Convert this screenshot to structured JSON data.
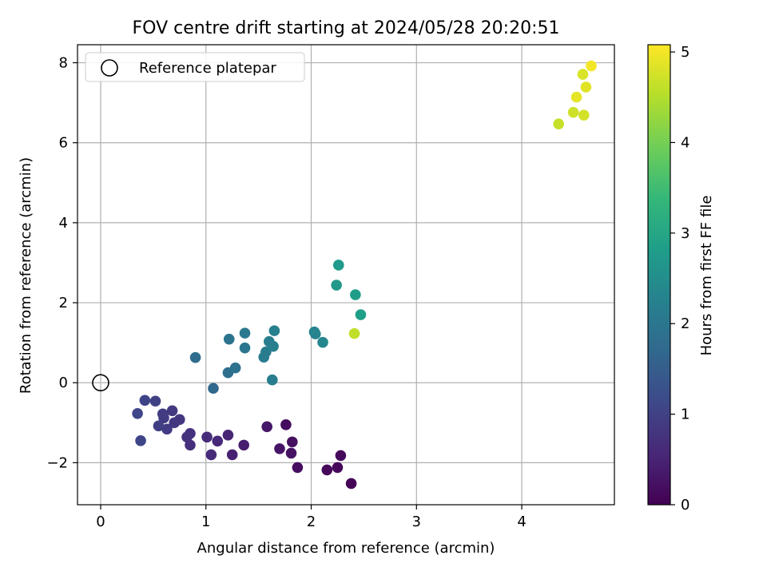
{
  "chart_data": {
    "type": "scatter",
    "title": "FOV centre drift starting at 2024/05/28 20:20:51",
    "xlabel": "Angular distance from reference (arcmin)",
    "ylabel": "Rotation from reference (arcmin)",
    "xlim": [
      -0.22,
      4.88
    ],
    "ylim": [
      -3.05,
      8.45
    ],
    "xticks": [
      0,
      1,
      2,
      3,
      4
    ],
    "yticks": [
      -2,
      0,
      2,
      4,
      6,
      8
    ],
    "ytick_labels": [
      "−2",
      "0",
      "2",
      "4",
      "6",
      "8"
    ],
    "grid": true,
    "legend": {
      "placement": "top-left",
      "entries": [
        "Reference platepar"
      ]
    },
    "reference_point": {
      "x": 0,
      "y": 0,
      "label": "Reference platepar"
    },
    "colorbar": {
      "label": "Hours from first FF file",
      "range": [
        0,
        5.08
      ],
      "ticks": [
        0,
        1,
        2,
        3,
        4,
        5
      ],
      "colormap": [
        "#440154",
        "#482878",
        "#3e4989",
        "#31688e",
        "#26828e",
        "#1f9e89",
        "#35b779",
        "#6ece58",
        "#b5de2b",
        "#fde725"
      ]
    },
    "points": [
      {
        "x": 2.38,
        "y": -2.52,
        "h": 0.05
      },
      {
        "x": 2.15,
        "y": -2.18,
        "h": 0.08
      },
      {
        "x": 2.25,
        "y": -2.12,
        "h": 0.1
      },
      {
        "x": 2.28,
        "y": -1.82,
        "h": 0.12
      },
      {
        "x": 1.76,
        "y": -1.05,
        "h": 0.15
      },
      {
        "x": 1.87,
        "y": -2.12,
        "h": 0.18
      },
      {
        "x": 1.82,
        "y": -1.48,
        "h": 0.22
      },
      {
        "x": 1.81,
        "y": -1.76,
        "h": 0.25
      },
      {
        "x": 1.7,
        "y": -1.65,
        "h": 0.28
      },
      {
        "x": 1.58,
        "y": -1.1,
        "h": 0.32
      },
      {
        "x": 1.36,
        "y": -1.56,
        "h": 0.42
      },
      {
        "x": 1.25,
        "y": -1.8,
        "h": 0.48
      },
      {
        "x": 1.21,
        "y": -1.31,
        "h": 0.52
      },
      {
        "x": 1.11,
        "y": -1.46,
        "h": 0.56
      },
      {
        "x": 1.05,
        "y": -1.8,
        "h": 0.6
      },
      {
        "x": 1.01,
        "y": -1.36,
        "h": 0.64
      },
      {
        "x": 0.85,
        "y": -1.56,
        "h": 0.7
      },
      {
        "x": 0.85,
        "y": -1.27,
        "h": 0.72
      },
      {
        "x": 0.82,
        "y": -1.36,
        "h": 0.76
      },
      {
        "x": 0.75,
        "y": -0.92,
        "h": 0.8
      },
      {
        "x": 0.7,
        "y": -1.0,
        "h": 0.82
      },
      {
        "x": 0.68,
        "y": -0.7,
        "h": 0.85
      },
      {
        "x": 0.63,
        "y": -1.16,
        "h": 0.88
      },
      {
        "x": 0.6,
        "y": -0.88,
        "h": 0.9
      },
      {
        "x": 0.59,
        "y": -0.78,
        "h": 0.93
      },
      {
        "x": 0.55,
        "y": -1.08,
        "h": 0.95
      },
      {
        "x": 0.52,
        "y": -0.46,
        "h": 1.0
      },
      {
        "x": 0.42,
        "y": -0.44,
        "h": 1.05
      },
      {
        "x": 0.38,
        "y": -1.45,
        "h": 1.08
      },
      {
        "x": 0.35,
        "y": -0.77,
        "h": 1.1
      },
      {
        "x": 1.07,
        "y": -0.14,
        "h": 1.7
      },
      {
        "x": 0.9,
        "y": 0.63,
        "h": 1.8
      },
      {
        "x": 1.21,
        "y": 0.25,
        "h": 1.85
      },
      {
        "x": 1.28,
        "y": 0.37,
        "h": 1.9
      },
      {
        "x": 1.22,
        "y": 1.09,
        "h": 1.95
      },
      {
        "x": 1.37,
        "y": 0.87,
        "h": 2.0
      },
      {
        "x": 1.37,
        "y": 1.24,
        "h": 2.05
      },
      {
        "x": 1.55,
        "y": 0.64,
        "h": 2.1
      },
      {
        "x": 1.57,
        "y": 0.77,
        "h": 2.12
      },
      {
        "x": 1.63,
        "y": 0.07,
        "h": 2.15
      },
      {
        "x": 1.6,
        "y": 1.03,
        "h": 2.18
      },
      {
        "x": 1.64,
        "y": 0.91,
        "h": 2.2
      },
      {
        "x": 1.65,
        "y": 1.3,
        "h": 2.22
      },
      {
        "x": 2.03,
        "y": 1.27,
        "h": 2.28
      },
      {
        "x": 2.04,
        "y": 1.22,
        "h": 2.3
      },
      {
        "x": 2.11,
        "y": 1.01,
        "h": 2.35
      },
      {
        "x": 2.24,
        "y": 2.44,
        "h": 2.7
      },
      {
        "x": 2.26,
        "y": 2.94,
        "h": 2.75
      },
      {
        "x": 2.42,
        "y": 2.2,
        "h": 2.8
      },
      {
        "x": 2.47,
        "y": 1.7,
        "h": 2.85
      },
      {
        "x": 2.41,
        "y": 1.23,
        "h": 4.6
      },
      {
        "x": 4.35,
        "y": 6.47,
        "h": 4.65
      },
      {
        "x": 4.49,
        "y": 6.76,
        "h": 4.7
      },
      {
        "x": 4.59,
        "y": 6.69,
        "h": 4.75
      },
      {
        "x": 4.58,
        "y": 7.71,
        "h": 4.8
      },
      {
        "x": 4.61,
        "y": 7.39,
        "h": 4.85
      },
      {
        "x": 4.52,
        "y": 7.14,
        "h": 4.9
      },
      {
        "x": 4.66,
        "y": 7.92,
        "h": 5.0
      }
    ]
  }
}
